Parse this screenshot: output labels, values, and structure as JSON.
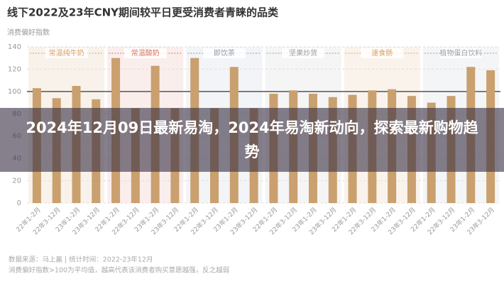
{
  "chart_data": {
    "type": "bar",
    "title": "线下2022及23年CNY期间较平日更受消费者青睐的品类",
    "y_label": "消费偏好指数",
    "groups": [
      "常温纯牛奶",
      "常温酸奶",
      "即饮茶",
      "坚果炒货",
      "速食肠",
      "植物蛋白饮料"
    ],
    "categories": [
      "22年1-2月",
      "22年3-12月",
      "23年1-2月",
      "23年3-12月",
      "22年1-2月",
      "22年3-12月",
      "23年1-2月",
      "23年3-12月",
      "22年1-2月",
      "22年3-12月",
      "23年1-2月",
      "23年3-12月",
      "22年1-2月",
      "22年3-12月",
      "23年1-2月",
      "23年3-12月",
      "22年1-2月",
      "22年3-12月",
      "23年1-2月",
      "23年3-12月",
      "22年1-2月",
      "22年3-12月",
      "23年1-2月",
      "23年3-12月"
    ],
    "values": [
      103,
      94,
      105,
      93,
      130,
      85,
      123,
      85,
      130,
      85,
      122,
      85,
      98,
      101,
      98,
      95,
      97,
      101,
      102,
      96,
      90,
      96,
      122,
      119
    ],
    "color": "#c9a06e",
    "ylim": [
      0,
      140
    ],
    "yticks": [
      0,
      20,
      40,
      60,
      80,
      100,
      120,
      140
    ],
    "grid": true,
    "notes": [
      "数据来源：马上赢 | 统计时间：2022-23年12月",
      "消费偏好指数>100为平均值，越高代表该消费者购买意愿越强，反之越弱"
    ]
  },
  "overlay": {
    "headline": "2024年12月09日最新易淘，2024年易淘新动向，探索最新购物趋势"
  }
}
